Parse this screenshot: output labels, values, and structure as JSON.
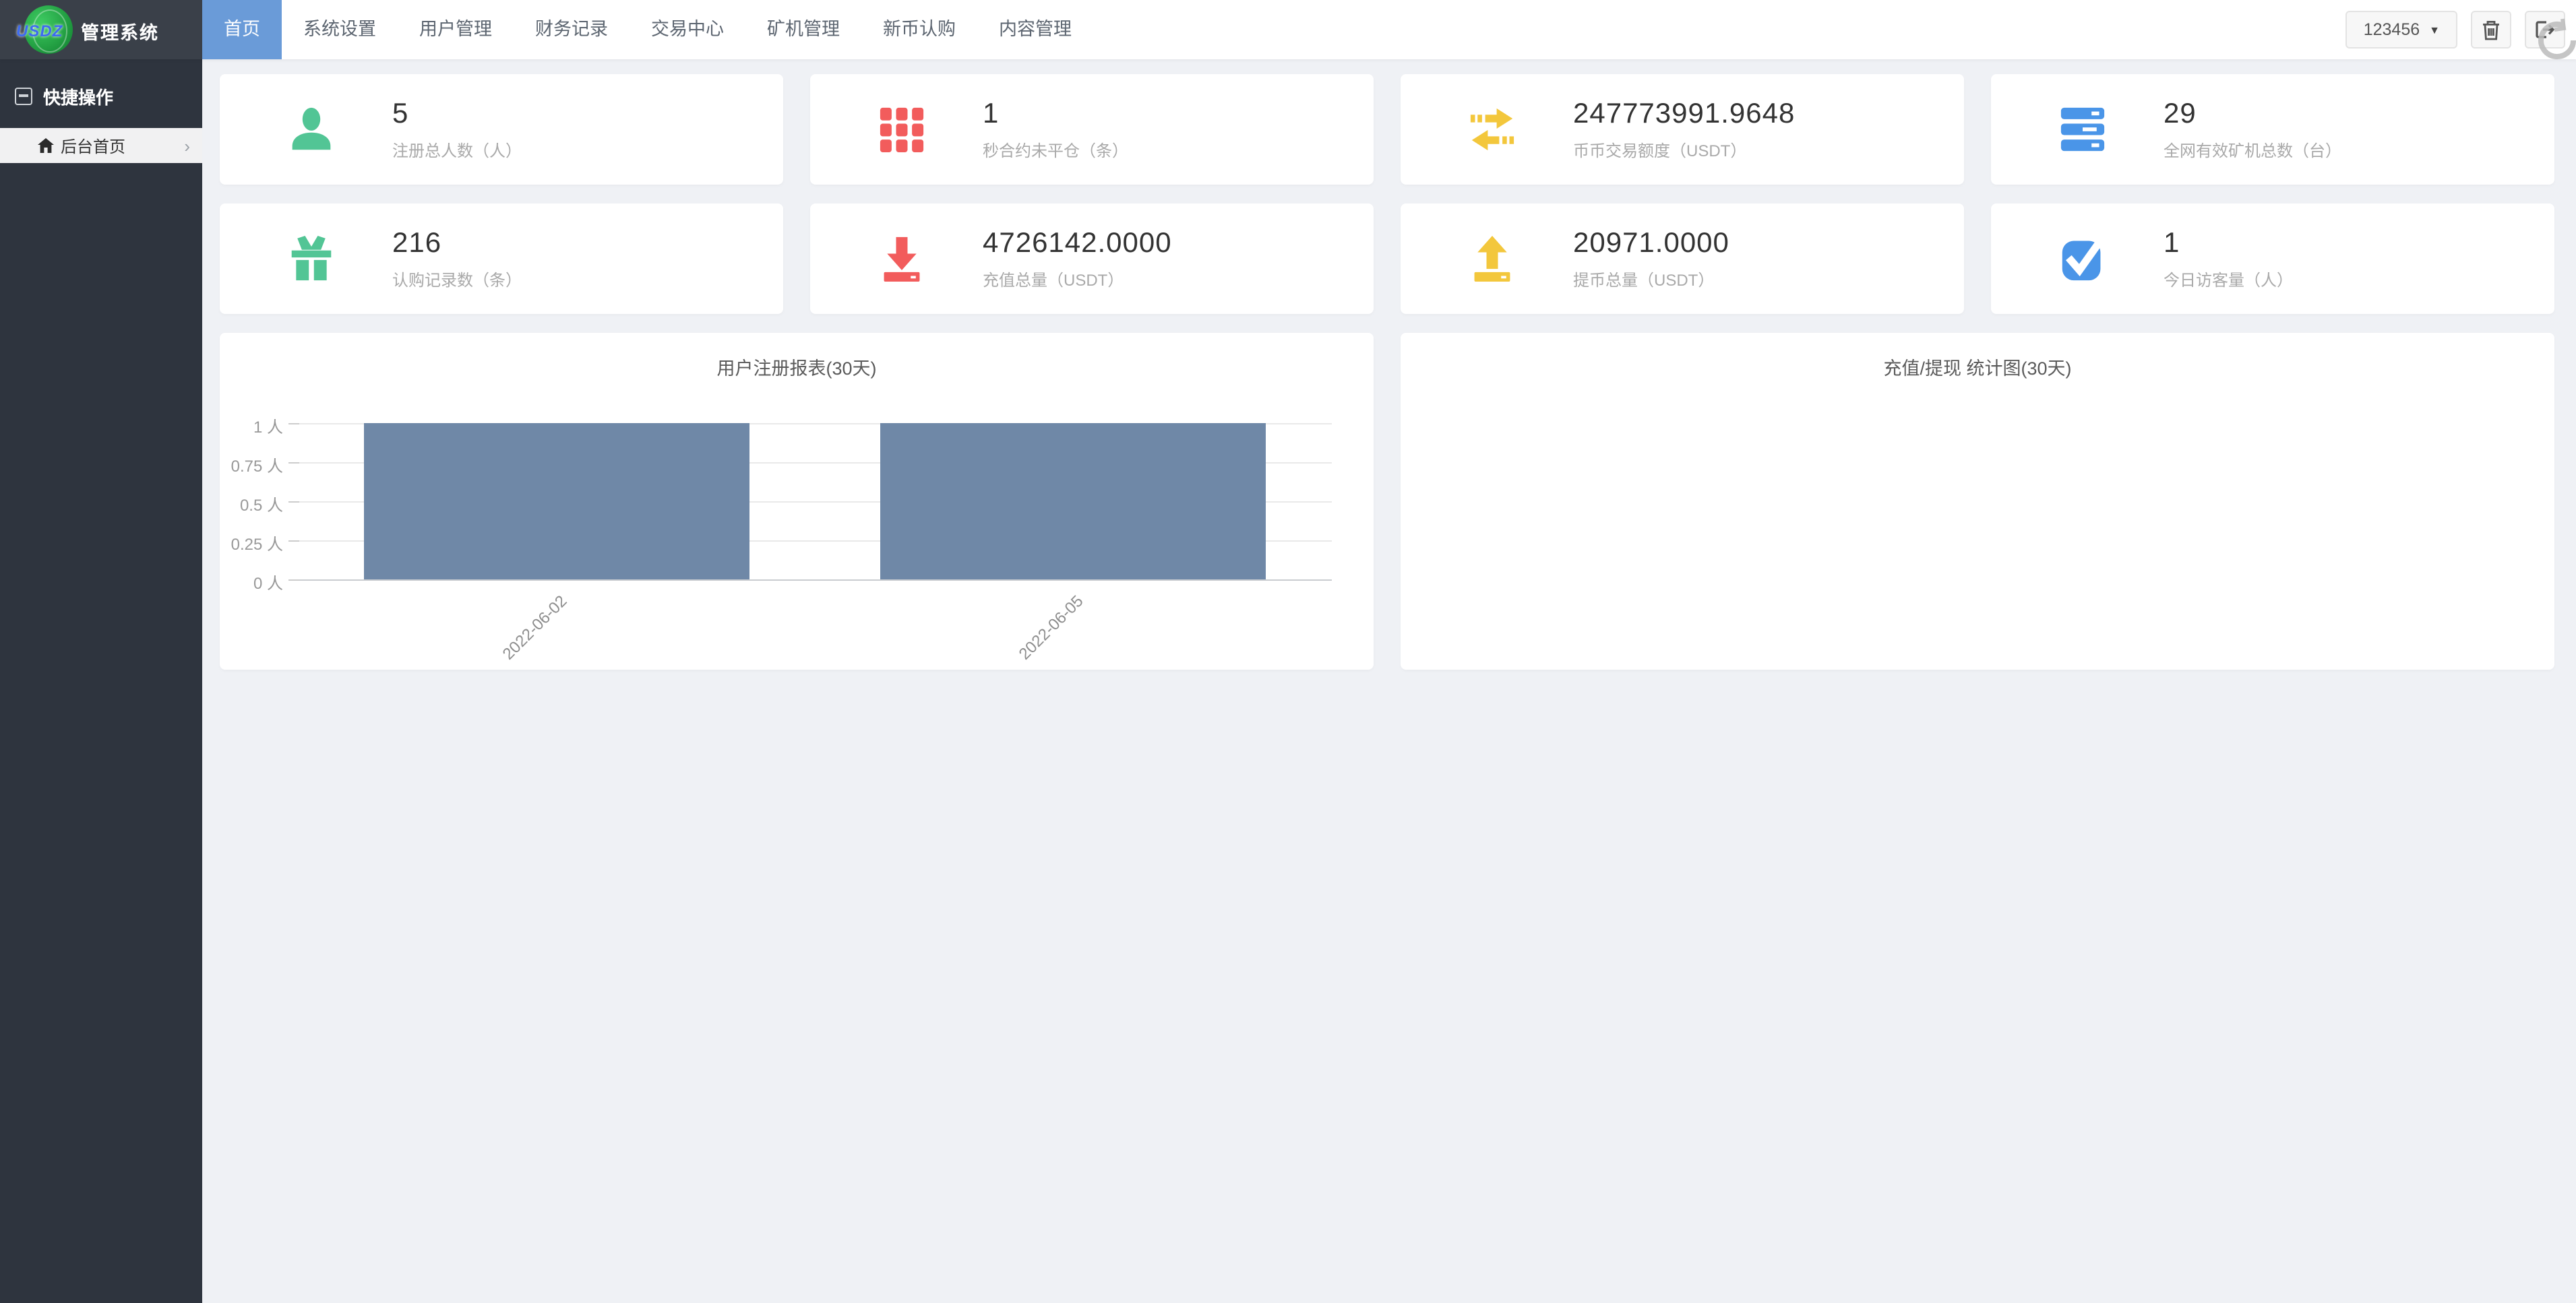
{
  "app": {
    "brand_acronym": "USDZ",
    "brand_name": "管理系统"
  },
  "topnav": {
    "items": [
      {
        "label": "首页",
        "active": true
      },
      {
        "label": "系统设置",
        "active": false
      },
      {
        "label": "用户管理",
        "active": false
      },
      {
        "label": "财务记录",
        "active": false
      },
      {
        "label": "交易中心",
        "active": false
      },
      {
        "label": "矿机管理",
        "active": false
      },
      {
        "label": "新币认购",
        "active": false
      },
      {
        "label": "内容管理",
        "active": false
      }
    ]
  },
  "topbar_right": {
    "username": "123456",
    "caret": "▼"
  },
  "sidebar": {
    "section_title": "快捷操作",
    "items": [
      {
        "label": "后台首页",
        "active": true,
        "chevron": "›"
      }
    ]
  },
  "stats": [
    {
      "value": "5",
      "label": "注册总人数（人）",
      "icon": "user-icon",
      "color": "#52c595"
    },
    {
      "value": "1",
      "label": "秒合约未平仓（条）",
      "icon": "grid-icon",
      "color": "#f25c5c"
    },
    {
      "value": "247773991.9648",
      "label": "币币交易额度（USDT）",
      "icon": "exchange-arrows-icon",
      "color": "#f3c73c"
    },
    {
      "value": "29",
      "label": "全网有效矿机总数（台）",
      "icon": "server-icon",
      "color": "#4a95e8"
    },
    {
      "value": "216",
      "label": "认购记录数（条）",
      "icon": "gift-icon",
      "color": "#52c595"
    },
    {
      "value": "4726142.0000",
      "label": "充值总量（USDT）",
      "icon": "download-icon",
      "color": "#f25c5c"
    },
    {
      "value": "20971.0000",
      "label": "提币总量（USDT）",
      "icon": "upload-icon",
      "color": "#f3c73c"
    },
    {
      "value": "1",
      "label": "今日访客量（人）",
      "icon": "check-square-icon",
      "color": "#4a95e8"
    }
  ],
  "chart_data": [
    {
      "type": "bar",
      "title": "用户注册报表(30天)",
      "categories": [
        "2022-06-02",
        "2022-06-05"
      ],
      "values": [
        1,
        1
      ],
      "ylim": [
        0,
        1
      ],
      "y_ticks": [
        "1 人",
        "0.75 人",
        "0.5 人",
        "0.25 人",
        "0 人"
      ],
      "bar_color": "#6f88a7",
      "grid": true,
      "legend_position": "none"
    },
    {
      "type": "empty",
      "title": "充值/提现 统计图(30天)",
      "categories": [],
      "values": []
    }
  ]
}
